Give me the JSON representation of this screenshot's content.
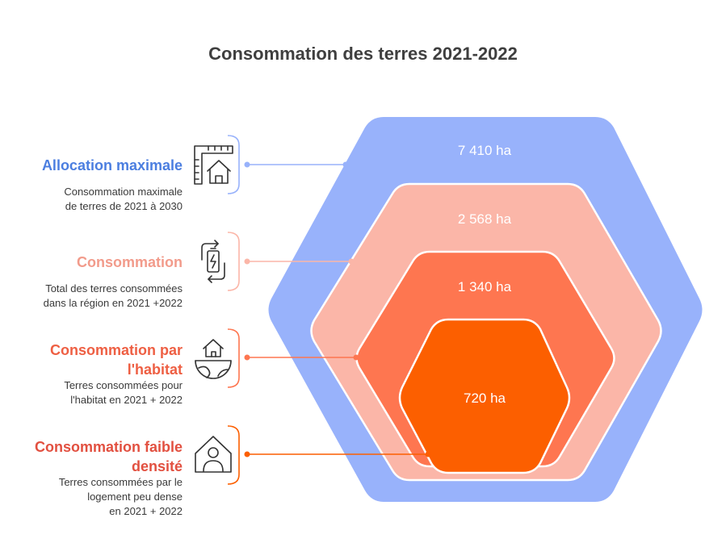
{
  "title": "Consommation des terres 2021-2022",
  "layers": [
    {
      "value_label": "7 410 ha",
      "title": "Allocation maximale",
      "description_lines": [
        "Consommation maximale",
        "de terres de 2021 à 2030"
      ],
      "color": "#98b2fb",
      "title_color": "#4b7ee0",
      "icon": "ruler-house-icon"
    },
    {
      "value_label": "2 568 ha",
      "title": "Consommation",
      "description_lines": [
        "Total des terres consommées",
        "dans la région en 2021 +2022"
      ],
      "color": "#fbb6a8",
      "title_color": "#f29b8b",
      "icon": "battery-cycle-icon"
    },
    {
      "value_label": "1 340 ha",
      "title_lines": [
        "Consommation par",
        "l'habitat"
      ],
      "description_lines": [
        "Terres consommées pour",
        "l'habitat en 2021 + 2022"
      ],
      "color": "#fe7650",
      "title_color": "#ee5f43",
      "icon": "house-globe-icon"
    },
    {
      "value_label": "720 ha",
      "title_lines": [
        "Consommation faible",
        "densité"
      ],
      "description_lines": [
        "Terres consommées par le",
        "logement peu dense",
        "en 2021 + 2022"
      ],
      "color": "#fc5f00",
      "title_color": "#e25040",
      "icon": "person-house-icon"
    }
  ]
}
